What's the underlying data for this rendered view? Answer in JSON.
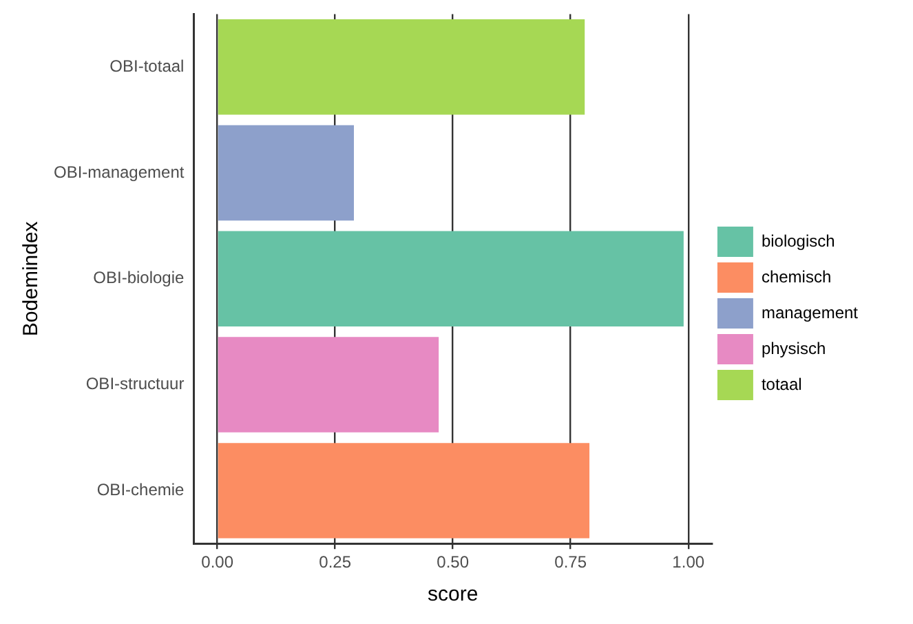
{
  "chart_data": {
    "type": "bar",
    "orientation": "horizontal",
    "stacked": true,
    "xlabel": "score",
    "ylabel": "Bodemindex",
    "categories": [
      "OBI-totaal",
      "OBI-management",
      "OBI-biologie",
      "OBI-structuur",
      "OBI-chemie"
    ],
    "series": [
      {
        "name": "biologisch",
        "color": "#66c2a5",
        "values": [
          null,
          null,
          0.99,
          null,
          null
        ]
      },
      {
        "name": "chemisch",
        "color": "#fc8d62",
        "values": [
          null,
          null,
          null,
          null,
          0.79
        ]
      },
      {
        "name": "management",
        "color": "#8da0cb",
        "values": [
          null,
          0.29,
          null,
          null,
          null
        ]
      },
      {
        "name": "physisch",
        "color": "#e78ac3",
        "values": [
          null,
          null,
          null,
          0.47,
          null
        ]
      },
      {
        "name": "totaal",
        "color": "#a6d854",
        "values": [
          0.78,
          null,
          null,
          null,
          null
        ]
      }
    ],
    "xlim": [
      -0.05,
      1.05
    ],
    "xticks": [
      {
        "value": 0,
        "label": "0.00"
      },
      {
        "value": 0.25,
        "label": "0.25"
      },
      {
        "value": 0.5,
        "label": "0.50"
      },
      {
        "value": 0.75,
        "label": "0.75"
      },
      {
        "value": 1,
        "label": "1.00"
      }
    ],
    "grid": "x",
    "legend": "right"
  }
}
